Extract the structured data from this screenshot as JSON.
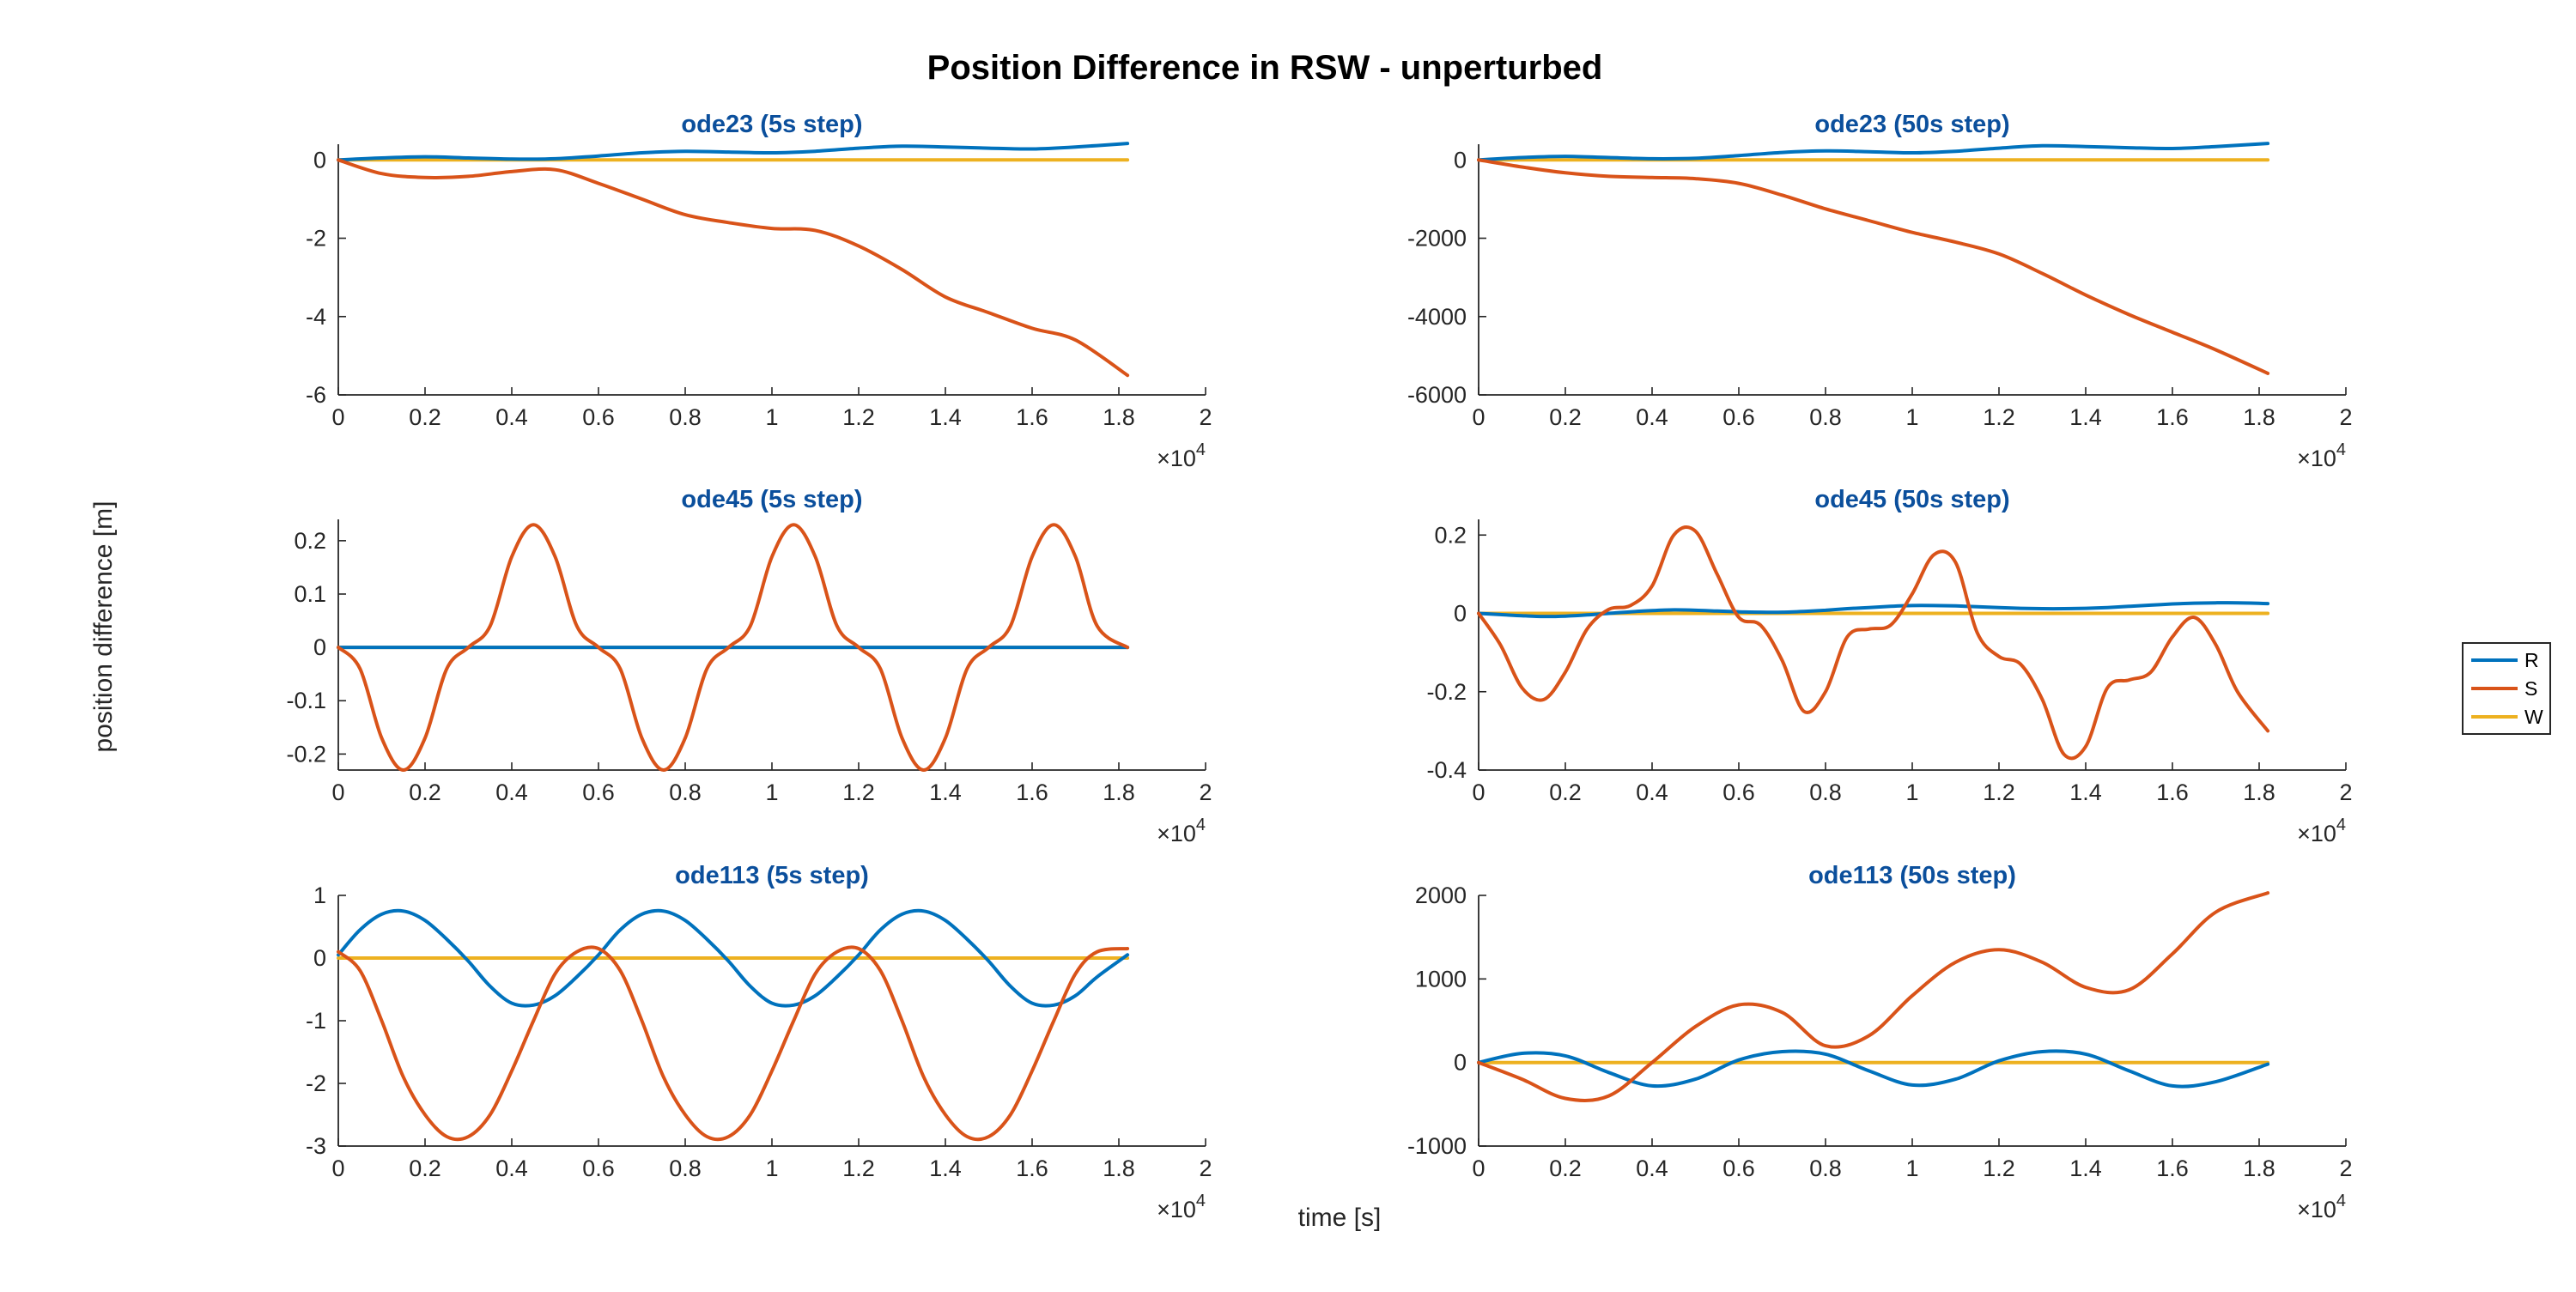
{
  "figure_title": "Position Difference in RSW - unperturbed",
  "xlabel": "time [s]",
  "ylabel": "position difference [m]",
  "legend": [
    {
      "name": "R",
      "color": "#0072BD"
    },
    {
      "name": "S",
      "color": "#D95319"
    },
    {
      "name": "W",
      "color": "#EDB120"
    }
  ],
  "chart_data": [
    {
      "type": "line",
      "title": "ode23 (5s step)",
      "xlim": [
        0,
        20000
      ],
      "xticks": [
        0,
        2000,
        4000,
        6000,
        8000,
        10000,
        12000,
        14000,
        16000,
        18000,
        20000
      ],
      "xtick_labels": [
        "0",
        "0.2",
        "0.4",
        "0.6",
        "0.8",
        "1",
        "1.2",
        "1.4",
        "1.6",
        "1.8",
        "2"
      ],
      "x_exponent": "4",
      "ylim": [
        -6,
        0.4
      ],
      "yticks": [
        -6,
        -4,
        -2,
        0
      ],
      "ytick_labels": [
        "-6",
        "-4",
        "-2",
        "0"
      ],
      "x": [
        0,
        1000,
        2000,
        3000,
        4000,
        5000,
        6000,
        7000,
        8000,
        9000,
        10000,
        11000,
        12000,
        13000,
        14000,
        15000,
        16000,
        17000,
        18200
      ],
      "series": [
        {
          "name": "R",
          "values": [
            0,
            0.05,
            0.08,
            0.05,
            0.02,
            0.03,
            0.1,
            0.18,
            0.22,
            0.2,
            0.18,
            0.22,
            0.3,
            0.35,
            0.33,
            0.3,
            0.28,
            0.33,
            0.42
          ]
        },
        {
          "name": "S",
          "values": [
            0,
            -0.35,
            -0.45,
            -0.42,
            -0.3,
            -0.25,
            -0.6,
            -1.0,
            -1.4,
            -1.6,
            -1.75,
            -1.8,
            -2.2,
            -2.8,
            -3.5,
            -3.9,
            -4.3,
            -4.6,
            -5.5
          ]
        },
        {
          "name": "W",
          "values": [
            0,
            0,
            0,
            0,
            0,
            0,
            0,
            0,
            0,
            0,
            0,
            0,
            0,
            0,
            0,
            0,
            0,
            0,
            0
          ]
        }
      ]
    },
    {
      "type": "line",
      "title": "ode23 (50s step)",
      "xlim": [
        0,
        20000
      ],
      "xticks": [
        0,
        2000,
        4000,
        6000,
        8000,
        10000,
        12000,
        14000,
        16000,
        18000,
        20000
      ],
      "xtick_labels": [
        "0",
        "0.2",
        "0.4",
        "0.6",
        "0.8",
        "1",
        "1.2",
        "1.4",
        "1.6",
        "1.8",
        "2"
      ],
      "x_exponent": "4",
      "ylim": [
        -6000,
        400
      ],
      "yticks": [
        -6000,
        -4000,
        -2000,
        0
      ],
      "ytick_labels": [
        "-6000",
        "-4000",
        "-2000",
        "0"
      ],
      "x": [
        0,
        1000,
        2000,
        3000,
        4000,
        5000,
        6000,
        7000,
        8000,
        9000,
        10000,
        11000,
        12000,
        13000,
        14000,
        15000,
        16000,
        17000,
        18200
      ],
      "series": [
        {
          "name": "R",
          "values": [
            0,
            60,
            90,
            60,
            30,
            40,
            110,
            190,
            230,
            210,
            180,
            220,
            300,
            360,
            340,
            310,
            290,
            340,
            420
          ]
        },
        {
          "name": "S",
          "values": [
            0,
            -180,
            -330,
            -420,
            -450,
            -480,
            -600,
            -900,
            -1250,
            -1550,
            -1850,
            -2100,
            -2400,
            -2900,
            -3450,
            -3950,
            -4400,
            -4850,
            -5450
          ]
        },
        {
          "name": "W",
          "values": [
            0,
            0,
            0,
            0,
            0,
            0,
            0,
            0,
            0,
            0,
            0,
            0,
            0,
            0,
            0,
            0,
            0,
            0,
            0
          ]
        }
      ]
    },
    {
      "type": "line",
      "title": "ode45 (5s step)",
      "xlim": [
        0,
        20000
      ],
      "xticks": [
        0,
        2000,
        4000,
        6000,
        8000,
        10000,
        12000,
        14000,
        16000,
        18000,
        20000
      ],
      "xtick_labels": [
        "0",
        "0.2",
        "0.4",
        "0.6",
        "0.8",
        "1",
        "1.2",
        "1.4",
        "1.6",
        "1.8",
        "2"
      ],
      "x_exponent": "4",
      "ylim": [
        -0.23,
        0.24
      ],
      "yticks": [
        -0.2,
        -0.1,
        0,
        0.1,
        0.2
      ],
      "ytick_labels": [
        "-0.2",
        "-0.1",
        "0",
        "0.1",
        "0.2"
      ],
      "x": [
        0,
        500,
        1000,
        1500,
        2000,
        2500,
        3000,
        3500,
        4000,
        4500,
        5000,
        5500,
        6000,
        6500,
        7000,
        7500,
        8000,
        8500,
        9000,
        9500,
        10000,
        10500,
        11000,
        11500,
        12000,
        12500,
        13000,
        13500,
        14000,
        14500,
        15000,
        15500,
        16000,
        16500,
        17000,
        17500,
        18200
      ],
      "series": [
        {
          "name": "R",
          "values": [
            0,
            0,
            0,
            0,
            0,
            0,
            0,
            0,
            0,
            0,
            0,
            0,
            0,
            0,
            0,
            0,
            0,
            0,
            0,
            0,
            0,
            0,
            0,
            0,
            0,
            0,
            0,
            0,
            0,
            0,
            0,
            0,
            0,
            0,
            0,
            0,
            0
          ]
        },
        {
          "name": "S",
          "values": [
            0,
            -0.04,
            -0.17,
            -0.23,
            -0.17,
            -0.04,
            0,
            0.04,
            0.17,
            0.23,
            0.17,
            0.04,
            0,
            -0.04,
            -0.17,
            -0.23,
            -0.17,
            -0.04,
            0,
            0.04,
            0.17,
            0.23,
            0.17,
            0.04,
            0,
            -0.04,
            -0.17,
            -0.23,
            -0.17,
            -0.04,
            0,
            0.04,
            0.17,
            0.23,
            0.17,
            0.04,
            0
          ]
        },
        {
          "name": "W",
          "values": [
            0,
            0,
            0,
            0,
            0,
            0,
            0,
            0,
            0,
            0,
            0,
            0,
            0,
            0,
            0,
            0,
            0,
            0,
            0,
            0,
            0,
            0,
            0,
            0,
            0,
            0,
            0,
            0,
            0,
            0,
            0,
            0,
            0,
            0,
            0,
            0,
            0
          ]
        }
      ]
    },
    {
      "type": "line",
      "title": "ode45 (50s step)",
      "xlim": [
        0,
        20000
      ],
      "xticks": [
        0,
        2000,
        4000,
        6000,
        8000,
        10000,
        12000,
        14000,
        16000,
        18000,
        20000
      ],
      "xtick_labels": [
        "0",
        "0.2",
        "0.4",
        "0.6",
        "0.8",
        "1",
        "1.2",
        "1.4",
        "1.6",
        "1.8",
        "2"
      ],
      "x_exponent": "4",
      "ylim": [
        -0.4,
        0.24
      ],
      "yticks": [
        -0.4,
        -0.2,
        0,
        0.2
      ],
      "ytick_labels": [
        "-0.4",
        "-0.2",
        "0",
        "0.2"
      ],
      "x": [
        0,
        500,
        1000,
        1500,
        2000,
        2500,
        3000,
        3500,
        4000,
        4500,
        5000,
        5500,
        6000,
        6500,
        7000,
        7500,
        8000,
        8500,
        9000,
        9500,
        10000,
        10500,
        11000,
        11500,
        12000,
        12500,
        13000,
        13500,
        14000,
        14500,
        15000,
        15500,
        16000,
        16500,
        17000,
        17500,
        18200
      ],
      "series": [
        {
          "name": "R",
          "values": [
            0,
            -0.003,
            -0.006,
            -0.008,
            -0.007,
            -0.004,
            0,
            0.004,
            0.007,
            0.009,
            0.008,
            0.006,
            0.004,
            0.003,
            0.003,
            0.005,
            0.008,
            0.012,
            0.015,
            0.018,
            0.02,
            0.02,
            0.019,
            0.017,
            0.015,
            0.013,
            0.012,
            0.012,
            0.013,
            0.015,
            0.018,
            0.021,
            0.024,
            0.026,
            0.027,
            0.027,
            0.025
          ]
        },
        {
          "name": "S",
          "values": [
            0,
            -0.08,
            -0.19,
            -0.22,
            -0.15,
            -0.04,
            0.01,
            0.02,
            0.07,
            0.2,
            0.21,
            0.1,
            -0.01,
            -0.03,
            -0.12,
            -0.25,
            -0.2,
            -0.06,
            -0.04,
            -0.03,
            0.05,
            0.15,
            0.13,
            -0.05,
            -0.11,
            -0.13,
            -0.22,
            -0.36,
            -0.34,
            -0.19,
            -0.17,
            -0.15,
            -0.06,
            -0.01,
            -0.08,
            -0.2,
            -0.3
          ]
        },
        {
          "name": "W",
          "values": [
            0,
            0,
            0,
            0,
            0,
            0,
            0,
            0,
            0,
            0,
            0,
            0,
            0,
            0,
            0,
            0,
            0,
            0,
            0,
            0,
            0,
            0,
            0,
            0,
            0,
            0,
            0,
            0,
            0,
            0,
            0,
            0,
            0,
            0,
            0,
            0,
            0
          ]
        }
      ]
    },
    {
      "type": "line",
      "title": "ode113 (5s step)",
      "xlim": [
        0,
        20000
      ],
      "xticks": [
        0,
        2000,
        4000,
        6000,
        8000,
        10000,
        12000,
        14000,
        16000,
        18000,
        20000
      ],
      "xtick_labels": [
        "0",
        "0.2",
        "0.4",
        "0.6",
        "0.8",
        "1",
        "1.2",
        "1.4",
        "1.6",
        "1.8",
        "2"
      ],
      "x_exponent": "4",
      "ylim": [
        -3,
        1
      ],
      "yticks": [
        -3,
        -2,
        -1,
        0,
        1
      ],
      "ytick_labels": [
        "-3",
        "-2",
        "-1",
        "0",
        "1"
      ],
      "x": [
        0,
        500,
        1000,
        1500,
        2000,
        2500,
        3000,
        3500,
        4000,
        4500,
        5000,
        5500,
        6000,
        6500,
        7000,
        7500,
        8000,
        8500,
        9000,
        9500,
        10000,
        10500,
        11000,
        11500,
        12000,
        12500,
        13000,
        13500,
        14000,
        14500,
        15000,
        15500,
        16000,
        16500,
        17000,
        17500,
        18200
      ],
      "series": [
        {
          "name": "R",
          "values": [
            0.05,
            0.45,
            0.7,
            0.75,
            0.6,
            0.3,
            -0.05,
            -0.45,
            -0.72,
            -0.75,
            -0.6,
            -0.3,
            0.05,
            0.45,
            0.7,
            0.75,
            0.6,
            0.3,
            -0.05,
            -0.45,
            -0.72,
            -0.75,
            -0.6,
            -0.3,
            0.05,
            0.45,
            0.7,
            0.75,
            0.6,
            0.3,
            -0.05,
            -0.45,
            -0.72,
            -0.75,
            -0.6,
            -0.3,
            0.05
          ]
        },
        {
          "name": "S",
          "values": [
            0.1,
            -0.2,
            -1.0,
            -1.9,
            -2.5,
            -2.85,
            -2.85,
            -2.5,
            -1.8,
            -1.0,
            -0.25,
            0.1,
            0.15,
            -0.2,
            -1.0,
            -1.9,
            -2.5,
            -2.85,
            -2.85,
            -2.5,
            -1.8,
            -1.0,
            -0.25,
            0.1,
            0.15,
            -0.2,
            -1.0,
            -1.9,
            -2.5,
            -2.85,
            -2.85,
            -2.5,
            -1.8,
            -1.0,
            -0.25,
            0.1,
            0.15
          ]
        },
        {
          "name": "W",
          "values": [
            0,
            0,
            0,
            0,
            0,
            0,
            0,
            0,
            0,
            0,
            0,
            0,
            0,
            0,
            0,
            0,
            0,
            0,
            0,
            0,
            0,
            0,
            0,
            0,
            0,
            0,
            0,
            0,
            0,
            0,
            0,
            0,
            0,
            0,
            0,
            0,
            0
          ]
        }
      ]
    },
    {
      "type": "line",
      "title": "ode113 (50s step)",
      "xlim": [
        0,
        20000
      ],
      "xticks": [
        0,
        2000,
        4000,
        6000,
        8000,
        10000,
        12000,
        14000,
        16000,
        18000,
        20000
      ],
      "xtick_labels": [
        "0",
        "0.2",
        "0.4",
        "0.6",
        "0.8",
        "1",
        "1.2",
        "1.4",
        "1.6",
        "1.8",
        "2"
      ],
      "x_exponent": "4",
      "ylim": [
        -1000,
        2000
      ],
      "yticks": [
        -1000,
        0,
        1000,
        2000
      ],
      "ytick_labels": [
        "-1000",
        "0",
        "1000",
        "2000"
      ],
      "x": [
        0,
        1000,
        2000,
        3000,
        4000,
        5000,
        6000,
        7000,
        8000,
        9000,
        10000,
        11000,
        12000,
        13000,
        14000,
        15000,
        16000,
        17000,
        18200
      ],
      "series": [
        {
          "name": "R",
          "values": [
            0,
            110,
            80,
            -120,
            -280,
            -200,
            30,
            130,
            100,
            -100,
            -270,
            -200,
            20,
            130,
            100,
            -100,
            -280,
            -230,
            -20
          ]
        },
        {
          "name": "S",
          "values": [
            0,
            -200,
            -430,
            -400,
            0,
            430,
            690,
            600,
            200,
            320,
            800,
            1200,
            1350,
            1200,
            900,
            870,
            1300,
            1800,
            2030
          ]
        },
        {
          "name": "W",
          "values": [
            0,
            0,
            0,
            0,
            0,
            0,
            0,
            0,
            0,
            0,
            0,
            0,
            0,
            0,
            0,
            0,
            0,
            0,
            0
          ]
        }
      ]
    }
  ]
}
